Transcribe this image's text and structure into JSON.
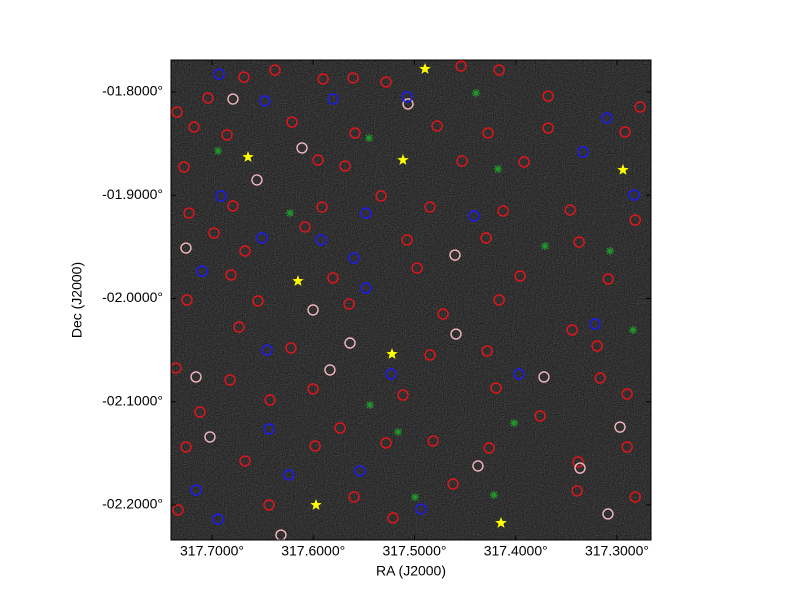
{
  "chart_data": {
    "type": "scatter",
    "xlabel": "RA (J2000)",
    "ylabel": "Dec (J2000)",
    "xlim": [
      317.7405,
      317.2664
    ],
    "ylim": [
      -2.2339,
      -1.769
    ],
    "xticks": [
      {
        "value": 317.7,
        "label": "317.7000°"
      },
      {
        "value": 317.6,
        "label": "317.6000°"
      },
      {
        "value": 317.5,
        "label": "317.5000°"
      },
      {
        "value": 317.4,
        "label": "317.4000°"
      },
      {
        "value": 317.3,
        "label": "317.3000°"
      }
    ],
    "yticks": [
      {
        "value": -1.8,
        "label": "-01.8000°"
      },
      {
        "value": -1.9,
        "label": "-01.9000°"
      },
      {
        "value": -2.0,
        "label": "-02.0000°"
      },
      {
        "value": -2.1,
        "label": "-02.1000°"
      },
      {
        "value": -2.2,
        "label": "-02.2000°"
      }
    ],
    "series": [
      {
        "marker": "circle",
        "color": "#e8141a",
        "x": [
          317.7346,
          317.704,
          317.6684,
          317.6378,
          317.5903,
          317.5607,
          317.5281,
          317.454,
          317.4164,
          317.368,
          317.7178,
          317.6852,
          317.621,
          317.5587,
          317.4777,
          317.4273,
          317.368,
          317.292,
          317.2771,
          317.7277,
          317.5953,
          317.5686,
          317.453,
          317.3917,
          317.7227,
          317.6793,
          317.5913,
          317.533,
          317.4846,
          317.4125,
          317.3462,
          317.282,
          317.698,
          317.6674,
          317.6081,
          317.5074,
          317.4293,
          317.3374,
          317.6812,
          317.5805,
          317.4974,
          317.3957,
          317.3087,
          317.7247,
          317.6546,
          317.5646,
          317.4718,
          317.4164,
          317.3443,
          317.6733,
          317.622,
          317.4846,
          317.4283,
          317.3196,
          317.7356,
          317.6822,
          317.6427,
          317.6002,
          317.5113,
          317.4194,
          317.3166,
          317.7119,
          317.5735,
          317.4816,
          317.3759,
          317.29,
          317.7257,
          317.6674,
          317.5982,
          317.5281,
          317.4263,
          317.3384,
          317.29,
          317.7336,
          317.6437,
          317.5597,
          317.5212,
          317.4619,
          317.3394,
          317.282
        ],
        "y": [
          -1.8194,
          -1.8058,
          -1.7855,
          -1.7787,
          -1.7874,
          -1.7864,
          -1.7903,
          -1.7748,
          -1.7787,
          -1.8039,
          -1.8339,
          -1.8416,
          -1.8291,
          -1.8397,
          -1.8329,
          -1.8397,
          -1.8349,
          -1.8387,
          -1.8145,
          -1.8726,
          -1.8659,
          -1.8717,
          -1.8668,
          -1.8678,
          -1.9172,
          -1.9104,
          -1.9114,
          -1.9007,
          -1.9114,
          -1.9152,
          -1.9143,
          -1.924,
          -1.9366,
          -1.954,
          -1.9307,
          -1.9433,
          -1.9414,
          -1.9453,
          -1.9772,
          -1.9801,
          -1.9705,
          -1.9782,
          -1.9811,
          -2.0014,
          -2.0024,
          -2.0053,
          -2.015,
          -2.0014,
          -2.0305,
          -2.0276,
          -2.0479,
          -2.0547,
          -2.0508,
          -2.046,
          -2.0673,
          -2.0789,
          -2.0983,
          -2.0876,
          -2.0935,
          -2.0867,
          -2.077,
          -2.1099,
          -2.1254,
          -2.138,
          -2.1138,
          -2.0925,
          -2.1438,
          -2.1574,
          -2.1428,
          -2.1399,
          -2.1448,
          -2.1583,
          -2.1438,
          -2.2048,
          -2.2,
          -2.1922,
          -2.2126,
          -2.1796,
          -2.1864,
          -2.1922
        ]
      },
      {
        "marker": "circle",
        "color": "#f4b8c0",
        "x": [
          317.6793,
          317.6556,
          317.6111,
          317.5064,
          317.7257,
          317.6002,
          317.5637,
          317.459,
          317.702,
          317.5835,
          317.4373,
          317.6319,
          317.297,
          317.3365,
          317.3721,
          317.3089,
          317.7158,
          317.46
        ],
        "y": [
          -1.8068,
          -1.8852,
          -1.8542,
          -1.8116,
          -1.9511,
          -2.0111,
          -2.0431,
          -2.0344,
          -2.1341,
          -2.0692,
          -2.1622,
          -2.2291,
          -2.1245,
          -2.1642,
          -2.076,
          -2.2087,
          -2.076,
          -1.9579
        ]
      },
      {
        "marker": "circle",
        "color": "#1a1aff",
        "x": [
          317.6931,
          317.6477,
          317.5805,
          317.5074,
          317.3336,
          317.3099,
          317.6911,
          317.6506,
          317.5923,
          317.5479,
          317.4412,
          317.5598,
          317.5479,
          317.7099,
          317.6457,
          317.5232,
          317.3968,
          317.3217,
          317.6437,
          317.5538,
          317.624,
          317.7158,
          317.6941,
          317.4936,
          317.2832
        ],
        "y": [
          -1.7826,
          -1.8087,
          -1.8068,
          -1.8048,
          -1.8581,
          -1.8252,
          -1.9007,
          -1.9414,
          -1.9433,
          -1.9172,
          -1.9201,
          -1.9608,
          -1.9898,
          -1.9734,
          -2.0499,
          -2.0731,
          -2.0731,
          -2.0247,
          -2.1264,
          -2.1671,
          -2.1709,
          -2.1855,
          -2.2136,
          -2.2039,
          -1.8998
        ]
      },
      {
        "marker": "plus",
        "color": "#1f9a2a",
        "x": [
          317.6941,
          317.623,
          317.5449,
          317.4393,
          317.4175,
          317.3711,
          317.3069,
          317.2842,
          317.4017,
          317.5163,
          317.4215,
          317.4995,
          317.544
        ],
        "y": [
          -1.8571,
          -1.9172,
          -1.8446,
          -1.801,
          -1.8746,
          -1.9492,
          -1.954,
          -2.0305,
          -2.1206,
          -2.1293,
          -2.1903,
          -2.1923,
          -2.1031
        ]
      },
      {
        "marker": "star",
        "color": "#ffff00",
        "x": [
          317.4896,
          317.6644,
          317.5114,
          317.2941,
          317.6151,
          317.5222,
          317.5973,
          317.4146
        ],
        "y": [
          -1.7777,
          -1.863,
          -1.8659,
          -1.8755,
          -1.9831,
          -2.0538,
          -2.2,
          -2.2174
        ]
      }
    ]
  }
}
